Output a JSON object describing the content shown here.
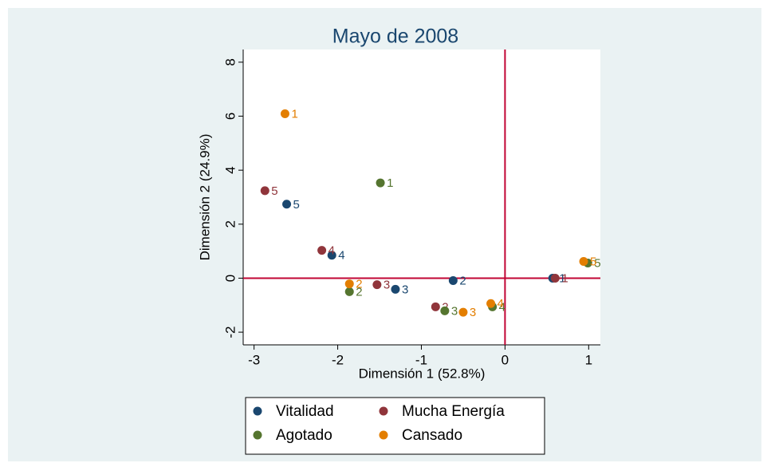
{
  "chart_data": {
    "type": "scatter",
    "title": "Mayo de 2008",
    "x_label": "Dimensión 1 (52.8%)",
    "y_label": "Dimensión 2 (24.9%)",
    "xlim": [
      -3.13,
      1.14
    ],
    "ylim": [
      -2.47,
      8.47
    ],
    "xticks": [
      -3,
      -2,
      -1,
      0,
      1
    ],
    "yticks": [
      -2,
      0,
      2,
      4,
      6,
      8
    ],
    "xline": 0,
    "yline": 0,
    "reference_color": "#c10534",
    "grid": false,
    "legend": "bottom",
    "series": [
      {
        "name": "Vitalidad",
        "color": "#1a476f",
        "labels": [
          "1",
          "2",
          "3",
          "4",
          "5"
        ],
        "x": [
          0.57,
          -0.62,
          -1.31,
          -2.07,
          -2.61
        ],
        "values": [
          0,
          -0.09,
          -0.41,
          0.85,
          2.74
        ]
      },
      {
        "name": "Mucha Energía",
        "color": "#90353b",
        "labels": [
          "1",
          "2",
          "3",
          "4",
          "5"
        ],
        "x": [
          0.6,
          -0.83,
          -1.53,
          -2.19,
          -2.87
        ],
        "values": [
          0,
          -1.06,
          -0.24,
          1.03,
          3.24
        ]
      },
      {
        "name": "Agotado",
        "color": "#55752f",
        "labels": [
          "1",
          "2",
          "3",
          "4",
          "5"
        ],
        "x": [
          -1.49,
          -1.86,
          -0.72,
          -0.15,
          0.99
        ],
        "values": [
          3.53,
          -0.5,
          -1.21,
          -1.06,
          0.56
        ]
      },
      {
        "name": "Cansado",
        "color": "#e37e00",
        "labels": [
          "1",
          "2",
          "3",
          "4",
          "5"
        ],
        "x": [
          -2.63,
          -1.86,
          -0.5,
          -0.17,
          0.94
        ],
        "values": [
          6.09,
          -0.21,
          -1.26,
          -0.94,
          0.62
        ]
      }
    ]
  }
}
